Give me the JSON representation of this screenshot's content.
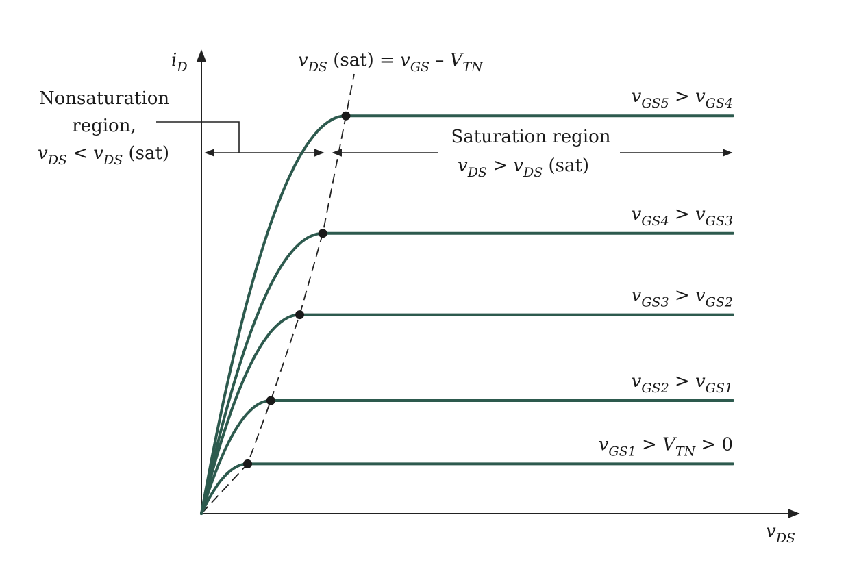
{
  "chart_data": {
    "type": "line",
    "title": "",
    "curve_color": "#2d5a4e",
    "x_axis": {
      "var": "v",
      "sub": "DS"
    },
    "y_axis": {
      "var": "i",
      "sub": "D"
    },
    "x_range": [
      0,
      1
    ],
    "y_range": [
      0,
      1
    ],
    "locus_label": {
      "a_var": "v",
      "a_sub": "DS",
      "a_rest": " (sat) = ",
      "b_var": "v",
      "b_sub": "GS",
      "b_rest": " – ",
      "c_var": "V",
      "c_sub": "TN"
    },
    "regions": {
      "nonsat": {
        "line1": "Nonsaturation",
        "line2": "region,",
        "l3_a_var": "v",
        "l3_a_sub": "DS",
        "l3_op": " < ",
        "l3_b_var": "v",
        "l3_b_sub": "DS",
        "l3_rest": " (sat)"
      },
      "sat": {
        "line1": "Saturation region",
        "l2_a_var": "v",
        "l2_a_sub": "DS",
        "l2_op": " > ",
        "l2_b_var": "v",
        "l2_b_sub": "DS",
        "l2_rest": " (sat)"
      }
    },
    "series": [
      {
        "vsat": 0.08,
        "isat": 0.11,
        "label": {
          "a_var": "v",
          "a_sub": "GS1",
          "op": " > ",
          "b_var": "V",
          "b_sub": "TN",
          "tail": " > 0"
        }
      },
      {
        "vsat": 0.12,
        "isat": 0.25,
        "label": {
          "a_var": "v",
          "a_sub": "GS2",
          "op": " > ",
          "b_var": "v",
          "b_sub": "GS1",
          "tail": ""
        }
      },
      {
        "vsat": 0.17,
        "isat": 0.44,
        "label": {
          "a_var": "v",
          "a_sub": "GS3",
          "op": " > ",
          "b_var": "v",
          "b_sub": "GS2",
          "tail": ""
        }
      },
      {
        "vsat": 0.21,
        "isat": 0.62,
        "label": {
          "a_var": "v",
          "a_sub": "GS4",
          "op": " > ",
          "b_var": "v",
          "b_sub": "GS3",
          "tail": ""
        }
      },
      {
        "vsat": 0.25,
        "isat": 0.88,
        "label": {
          "a_var": "v",
          "a_sub": "GS5",
          "op": " > ",
          "b_var": "v",
          "b_sub": "GS4",
          "tail": ""
        }
      }
    ]
  }
}
